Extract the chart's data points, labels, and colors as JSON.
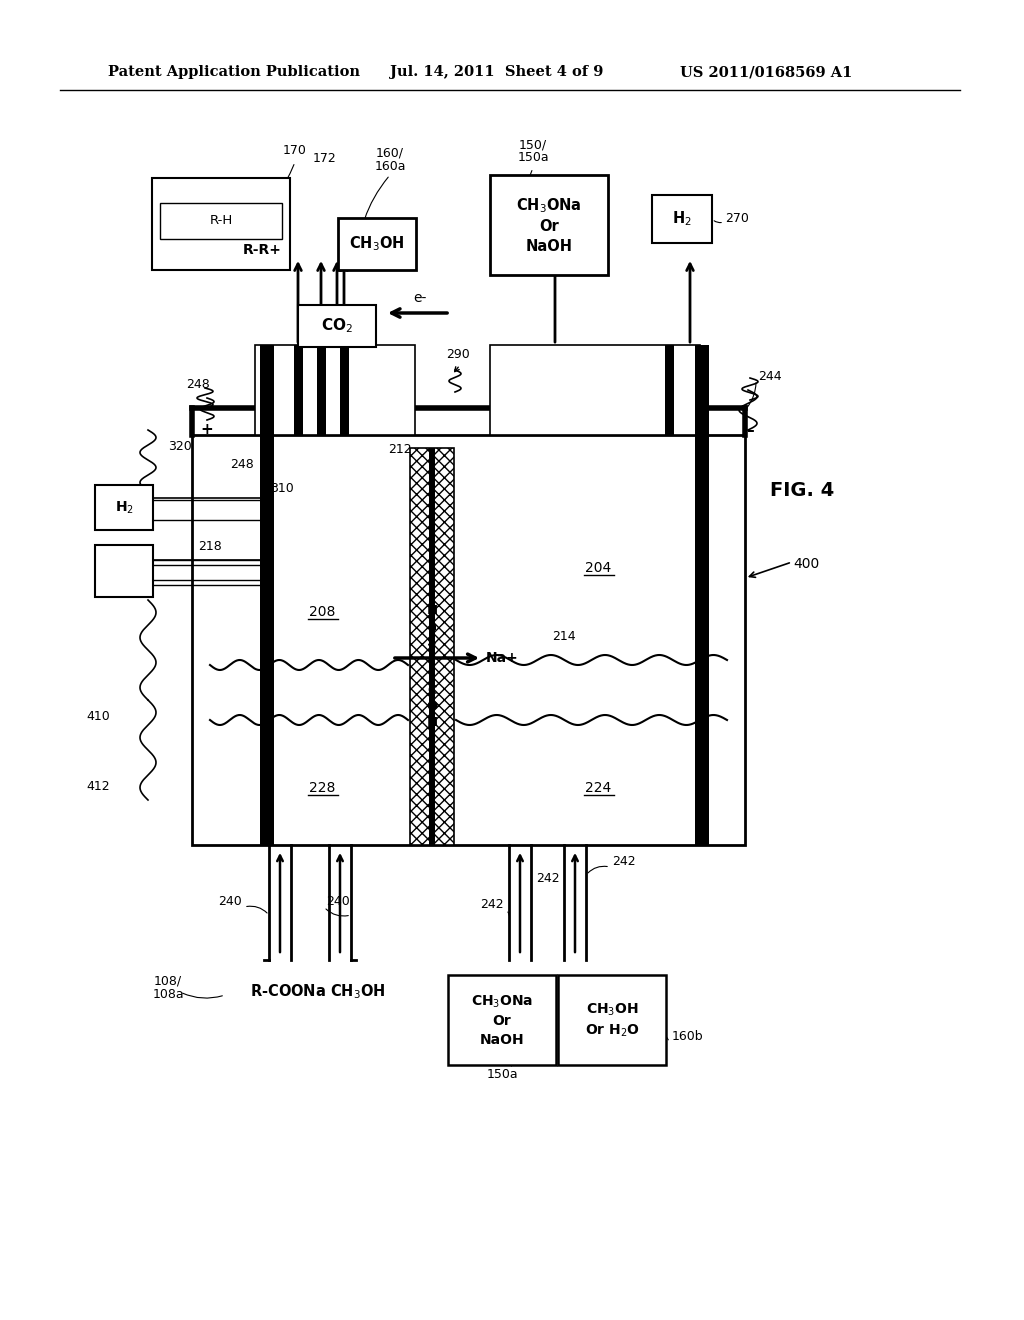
{
  "title_left": "Patent Application Publication",
  "title_mid": "Jul. 14, 2011  Sheet 4 of 9",
  "title_right": "US 2011/0168569 A1",
  "fig_label": "FIG. 4",
  "background": "#ffffff"
}
